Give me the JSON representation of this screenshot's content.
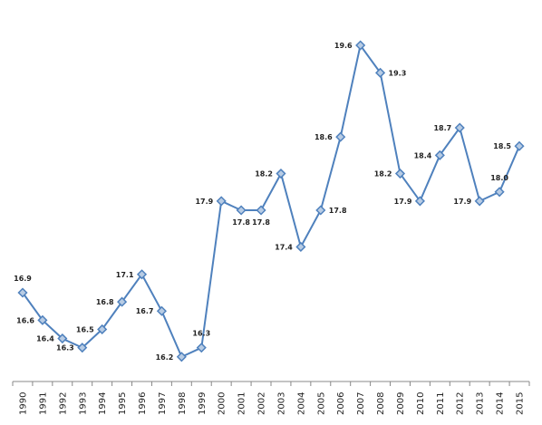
{
  "chart_data": {
    "type": "line",
    "title": "",
    "xlabel": "",
    "ylabel": "",
    "categories": [
      "1990",
      "1991",
      "1992",
      "1993",
      "1994",
      "1995",
      "1996",
      "1997",
      "1998",
      "1999",
      "2000",
      "2001",
      "2002",
      "2003",
      "2004",
      "2005",
      "2006",
      "2007",
      "2008",
      "2009",
      "2010",
      "2011",
      "2012",
      "2013",
      "2014",
      "2015"
    ],
    "series": [
      {
        "values": [
          16.9,
          16.6,
          16.4,
          16.3,
          16.5,
          16.8,
          17.1,
          16.7,
          16.2,
          16.3,
          17.9,
          17.8,
          17.8,
          18.2,
          17.4,
          17.8,
          18.6,
          19.6,
          19.3,
          18.2,
          17.9,
          18.4,
          18.7,
          17.9,
          18.0,
          18.5
        ],
        "data_labels": [
          "16.9",
          "16.6",
          "16.4",
          "16.3",
          "16.5",
          "16.8",
          "17.1",
          "16.7",
          "16.2",
          "16.3",
          "17.9",
          "17.8",
          "17.8",
          "18.2",
          "17.4",
          "17.8",
          "18.6",
          "19.6",
          "19.3",
          "18.2",
          "17.9",
          "18.4",
          "18.7",
          "17.9",
          "18.0",
          "18.5"
        ]
      }
    ],
    "ylim": [
      16.0,
      19.75
    ],
    "grid": false,
    "legend": "none",
    "y_axis_visible": false,
    "line_color": "#4f81bd",
    "marker_fill": "#b8cce4",
    "marker_stroke": "#4f81bd",
    "axis_color": "#888888"
  }
}
